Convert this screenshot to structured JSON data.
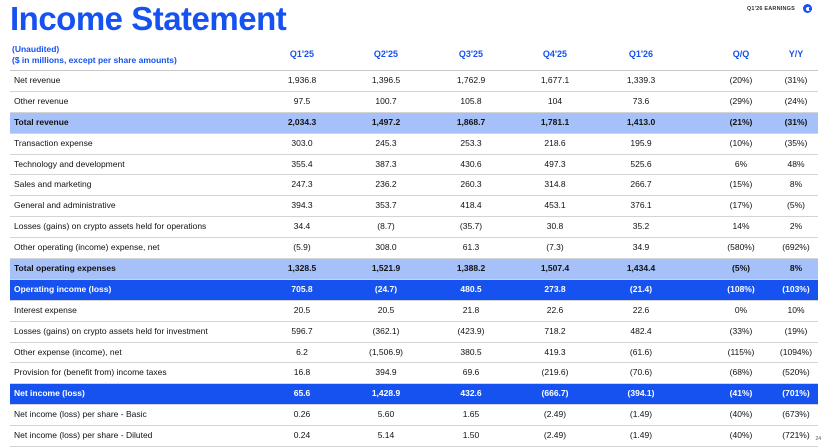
{
  "title": "Income Statement",
  "earnings_label": "Q1'26 EARNINGS",
  "brand_color": "#1652f0",
  "logo_icon": "coinbase-logo-icon",
  "header": {
    "line1": "(Unaudited)",
    "line2": "($ in millions, except per share amounts)",
    "columns": [
      "Q1'25",
      "Q2'25",
      "Q3'25",
      "Q4'25",
      "Q1'26",
      "Q/Q",
      "Y/Y"
    ]
  },
  "rows": [
    {
      "label": "Net revenue",
      "style": "normal",
      "values": [
        "1,936.8",
        "1,396.5",
        "1,762.9",
        "1,677.1",
        "1,339.3",
        "(20%)",
        "(31%)"
      ]
    },
    {
      "label": "Other revenue",
      "style": "normal",
      "values": [
        "97.5",
        "100.7",
        "105.8",
        "104",
        "73.6",
        "(29%)",
        "(24%)"
      ]
    },
    {
      "label": "Total revenue",
      "style": "subtotal",
      "values": [
        "2,034.3",
        "1,497.2",
        "1,868.7",
        "1,781.1",
        "1,413.0",
        "(21%)",
        "(31%)"
      ]
    },
    {
      "label": "Transaction expense",
      "style": "normal",
      "values": [
        "303.0",
        "245.3",
        "253.3",
        "218.6",
        "195.9",
        "(10%)",
        "(35%)"
      ]
    },
    {
      "label": "Technology and development",
      "style": "normal",
      "values": [
        "355.4",
        "387.3",
        "430.6",
        "497.3",
        "525.6",
        "6%",
        "48%"
      ]
    },
    {
      "label": "Sales and marketing",
      "style": "normal",
      "values": [
        "247.3",
        "236.2",
        "260.3",
        "314.8",
        "266.7",
        "(15%)",
        "8%"
      ]
    },
    {
      "label": "General and administrative",
      "style": "normal",
      "values": [
        "394.3",
        "353.7",
        "418.4",
        "453.1",
        "376.1",
        "(17%)",
        "(5%)"
      ]
    },
    {
      "label": "Losses (gains) on crypto assets held for operations",
      "style": "normal",
      "values": [
        "34.4",
        "(8.7)",
        "(35.7)",
        "30.8",
        "35.2",
        "14%",
        "2%"
      ]
    },
    {
      "label": "Other operating (income) expense, net",
      "style": "normal",
      "values": [
        "(5.9)",
        "308.0",
        "61.3",
        "(7.3)",
        "34.9",
        "(580%)",
        "(692%)"
      ]
    },
    {
      "label": "Total operating expenses",
      "style": "subtotal",
      "values": [
        "1,328.5",
        "1,521.9",
        "1,388.2",
        "1,507.4",
        "1,434.4",
        "(5%)",
        "8%"
      ]
    },
    {
      "label": "Operating income (loss)",
      "style": "total",
      "values": [
        "705.8",
        "(24.7)",
        "480.5",
        "273.8",
        "(21.4)",
        "(108%)",
        "(103%)"
      ]
    },
    {
      "label": "Interest expense",
      "style": "normal",
      "values": [
        "20.5",
        "20.5",
        "21.8",
        "22.6",
        "22.6",
        "0%",
        "10%"
      ]
    },
    {
      "label": "Losses (gains) on crypto assets held for investment",
      "style": "normal",
      "values": [
        "596.7",
        "(362.1)",
        "(423.9)",
        "718.2",
        "482.4",
        "(33%)",
        "(19%)"
      ]
    },
    {
      "label": "Other expense (income), net",
      "style": "normal",
      "values": [
        "6.2",
        "(1,506.9)",
        "380.5",
        "419.3",
        "(61.6)",
        "(115%)",
        "(1094%)"
      ]
    },
    {
      "label": "Provision for (benefit from) income taxes",
      "style": "normal",
      "values": [
        "16.8",
        "394.9",
        "69.6",
        "(219.6)",
        "(70.6)",
        "(68%)",
        "(520%)"
      ]
    },
    {
      "label": "Net income (loss)",
      "style": "total",
      "values": [
        "65.6",
        "1,428.9",
        "432.6",
        "(666.7)",
        "(394.1)",
        "(41%)",
        "(701%)"
      ]
    },
    {
      "label": "Net income (loss) per share - Basic",
      "style": "normal",
      "values": [
        "0.26",
        "5.60",
        "1.65",
        "(2.49)",
        "(1.49)",
        "(40%)",
        "(673%)"
      ]
    },
    {
      "label": "Net income (loss) per share - Diluted",
      "style": "normal",
      "values": [
        "0.24",
        "5.14",
        "1.50",
        "(2.49)",
        "(1.49)",
        "(40%)",
        "(721%)"
      ]
    }
  ],
  "page_number": "24"
}
